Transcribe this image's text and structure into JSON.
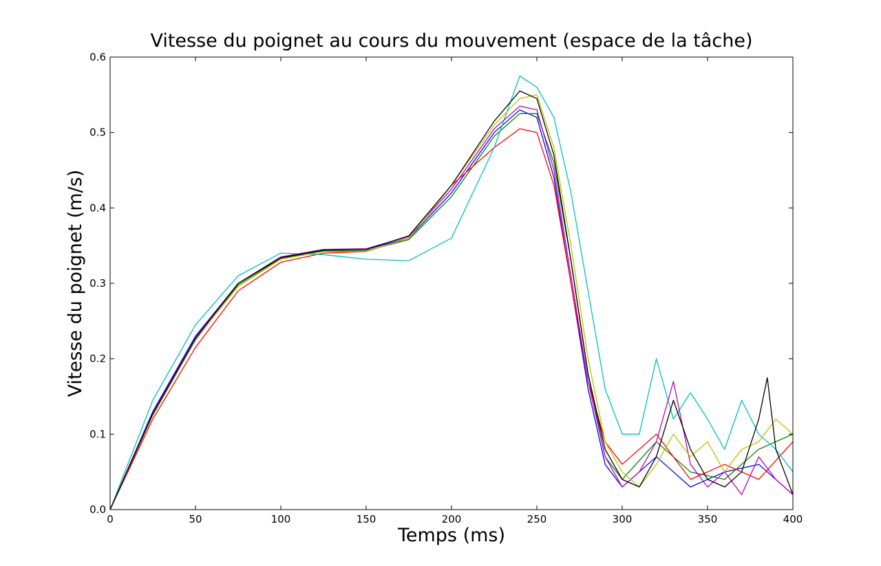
{
  "chart_data": {
    "type": "line",
    "title": "Vitesse du poignet au cours du mouvement (espace de la tâche)",
    "xlabel": "Temps (ms)",
    "ylabel": "Vitesse du poignet (m/s)",
    "xlim": [
      0,
      400
    ],
    "ylim": [
      0,
      0.6
    ],
    "x_ticks": [
      0,
      50,
      100,
      150,
      200,
      250,
      300,
      350,
      400
    ],
    "x_tick_labels": [
      "0",
      "50",
      "100",
      "150",
      "200",
      "250",
      "300",
      "350",
      "400"
    ],
    "y_ticks": [
      0.0,
      0.1,
      0.2,
      0.3,
      0.4,
      0.5,
      0.6
    ],
    "y_tick_labels": [
      "0.0",
      "0.1",
      "0.2",
      "0.3",
      "0.4",
      "0.5",
      "0.6"
    ],
    "grid": false,
    "legend": "none",
    "series_count_approx": 60,
    "palette": [
      "#0000ff",
      "#008000",
      "#ff0000",
      "#00bfbf",
      "#bf00bf",
      "#bfbf00",
      "#000000"
    ],
    "series": [
      {
        "color": "#0000ff",
        "x": [
          0,
          25,
          50,
          75,
          100,
          125,
          150,
          175,
          200,
          225,
          240,
          250,
          260,
          270,
          280,
          290,
          300,
          320,
          340,
          360,
          380,
          400
        ],
        "values": [
          0,
          0.13,
          0.23,
          0.3,
          0.335,
          0.345,
          0.345,
          0.36,
          0.42,
          0.5,
          0.53,
          0.52,
          0.44,
          0.3,
          0.16,
          0.06,
          0.03,
          0.07,
          0.03,
          0.05,
          0.06,
          0.02
        ]
      },
      {
        "color": "#008000",
        "x": [
          0,
          25,
          50,
          75,
          100,
          125,
          150,
          175,
          200,
          225,
          240,
          250,
          260,
          270,
          280,
          290,
          300,
          320,
          340,
          360,
          380,
          400
        ],
        "values": [
          0,
          0.125,
          0.225,
          0.298,
          0.333,
          0.343,
          0.343,
          0.358,
          0.415,
          0.495,
          0.525,
          0.525,
          0.46,
          0.33,
          0.18,
          0.07,
          0.04,
          0.09,
          0.05,
          0.04,
          0.08,
          0.1
        ]
      },
      {
        "color": "#ff0000",
        "x": [
          0,
          25,
          50,
          75,
          100,
          125,
          150,
          175,
          200,
          225,
          240,
          250,
          260,
          270,
          280,
          290,
          300,
          320,
          340,
          360,
          380,
          400
        ],
        "values": [
          0,
          0.12,
          0.215,
          0.29,
          0.328,
          0.34,
          0.342,
          0.36,
          0.43,
          0.48,
          0.505,
          0.5,
          0.43,
          0.3,
          0.17,
          0.09,
          0.06,
          0.1,
          0.04,
          0.06,
          0.04,
          0.09
        ]
      },
      {
        "color": "#00bfbf",
        "x": [
          0,
          25,
          50,
          75,
          100,
          125,
          150,
          175,
          200,
          225,
          240,
          250,
          260,
          270,
          280,
          290,
          300,
          310,
          320,
          330,
          340,
          350,
          360,
          370,
          380,
          390,
          400
        ],
        "values": [
          0,
          0.145,
          0.245,
          0.31,
          0.34,
          0.338,
          0.332,
          0.33,
          0.36,
          0.48,
          0.575,
          0.56,
          0.52,
          0.42,
          0.29,
          0.16,
          0.1,
          0.1,
          0.2,
          0.12,
          0.155,
          0.12,
          0.08,
          0.145,
          0.1,
          0.08,
          0.05
        ]
      },
      {
        "color": "#bf00bf",
        "x": [
          0,
          25,
          50,
          75,
          100,
          125,
          150,
          175,
          200,
          225,
          240,
          250,
          260,
          270,
          280,
          290,
          300,
          310,
          320,
          330,
          340,
          350,
          360,
          370,
          380,
          390,
          400
        ],
        "values": [
          0,
          0.128,
          0.228,
          0.3,
          0.335,
          0.345,
          0.346,
          0.362,
          0.425,
          0.505,
          0.535,
          0.53,
          0.45,
          0.31,
          0.17,
          0.07,
          0.03,
          0.05,
          0.09,
          0.17,
          0.06,
          0.03,
          0.05,
          0.02,
          0.07,
          0.04,
          0.02
        ]
      },
      {
        "color": "#bfbf00",
        "x": [
          0,
          25,
          50,
          75,
          100,
          125,
          150,
          175,
          200,
          225,
          240,
          250,
          260,
          270,
          280,
          290,
          300,
          310,
          320,
          330,
          340,
          350,
          360,
          370,
          380,
          390,
          400
        ],
        "values": [
          0,
          0.126,
          0.226,
          0.296,
          0.332,
          0.342,
          0.342,
          0.36,
          0.43,
          0.51,
          0.545,
          0.55,
          0.48,
          0.35,
          0.2,
          0.09,
          0.05,
          0.03,
          0.06,
          0.1,
          0.07,
          0.09,
          0.05,
          0.08,
          0.09,
          0.12,
          0.1
        ]
      },
      {
        "color": "#000000",
        "x": [
          0,
          25,
          50,
          75,
          100,
          125,
          150,
          175,
          200,
          225,
          240,
          250,
          260,
          270,
          280,
          290,
          300,
          310,
          320,
          330,
          340,
          350,
          360,
          370,
          380,
          385,
          390,
          400
        ],
        "values": [
          0,
          0.127,
          0.227,
          0.3,
          0.334,
          0.344,
          0.345,
          0.363,
          0.43,
          0.515,
          0.555,
          0.545,
          0.47,
          0.33,
          0.18,
          0.08,
          0.04,
          0.03,
          0.07,
          0.145,
          0.08,
          0.04,
          0.03,
          0.05,
          0.12,
          0.175,
          0.08,
          0.02
        ]
      }
    ]
  }
}
